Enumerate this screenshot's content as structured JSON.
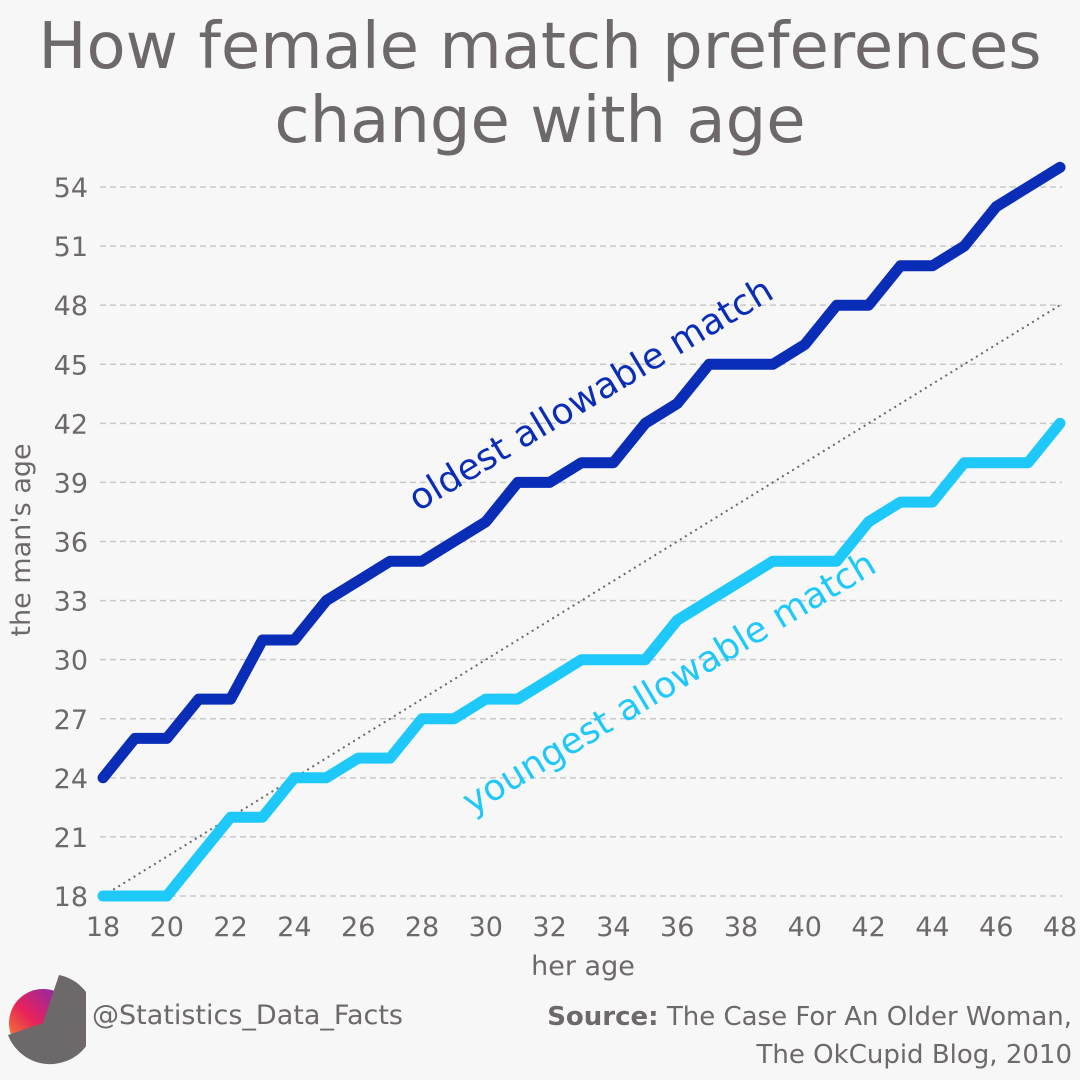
{
  "title_line1": "How female match preferences",
  "title_line2": "change with age",
  "footer": {
    "handle": "@Statistics_Data_Facts",
    "source_label": "Source:",
    "source_line1": "The Case For An Older Woman,",
    "source_line2": "The OkCupid Blog, 2010"
  },
  "colors": {
    "oldest": "#0a2db8",
    "youngest": "#1ec8fa",
    "text": "#6d6869",
    "grid": "#c8c8c8"
  },
  "chart_data": {
    "type": "line",
    "title": "How female match preferences change with age",
    "xlabel": "her age",
    "ylabel": "the man's age",
    "xlim": [
      18,
      48
    ],
    "ylim": [
      18,
      55
    ],
    "xticks": [
      18,
      20,
      22,
      24,
      26,
      28,
      30,
      32,
      34,
      36,
      38,
      40,
      42,
      44,
      46,
      48
    ],
    "yticks": [
      18,
      21,
      24,
      27,
      30,
      33,
      36,
      39,
      42,
      45,
      48,
      51,
      54
    ],
    "grid": "horizontal dashed",
    "x": [
      18,
      19,
      20,
      21,
      22,
      23,
      24,
      25,
      26,
      27,
      28,
      29,
      30,
      31,
      32,
      33,
      34,
      35,
      36,
      37,
      38,
      39,
      40,
      41,
      42,
      43,
      44,
      45,
      46,
      47,
      48
    ],
    "series": [
      {
        "name": "oldest allowable match",
        "values": [
          24,
          26,
          26,
          28,
          28,
          31,
          31,
          33,
          34,
          35,
          35,
          36,
          37,
          39,
          39,
          40,
          40,
          42,
          43,
          45,
          45,
          45,
          46,
          48,
          48,
          50,
          50,
          51,
          53,
          54,
          55
        ]
      },
      {
        "name": "youngest allowable match",
        "values": [
          18,
          18,
          18,
          20,
          22,
          22,
          24,
          24,
          25,
          25,
          27,
          27,
          28,
          28,
          29,
          30,
          30,
          30,
          32,
          33,
          34,
          35,
          35,
          35,
          37,
          38,
          38,
          40,
          40,
          40,
          42
        ]
      }
    ],
    "reference_line": {
      "style": "dotted",
      "from": [
        18,
        18
      ],
      "to": [
        48,
        48
      ]
    }
  }
}
